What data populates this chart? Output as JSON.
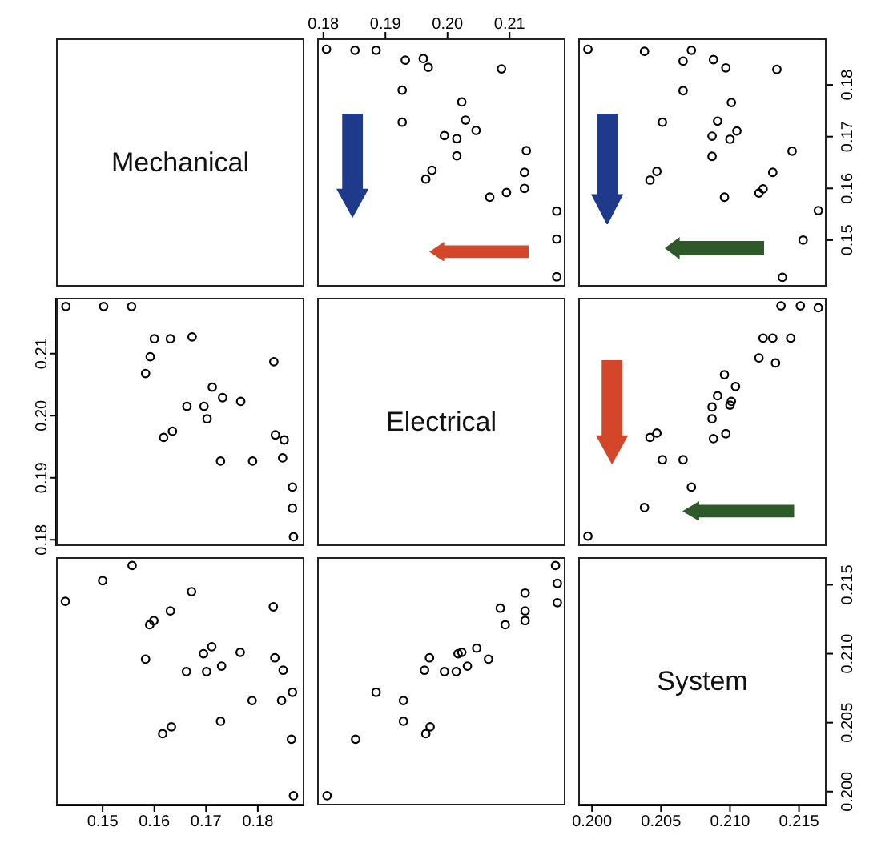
{
  "chart_data": [
    {
      "type": "other",
      "title": "Mechanical"
    },
    {
      "type": "scatter",
      "x": [
        0.2176,
        0.2176,
        0.2176,
        0.2124,
        0.2124,
        0.2127,
        0.2095,
        0.2068,
        0.2015,
        0.2046,
        0.2029,
        0.2023,
        0.2015,
        0.1995,
        0.1965,
        0.1975,
        0.1927,
        0.1927,
        0.2087,
        0.1969,
        0.1961,
        0.1932,
        0.1885,
        0.1851,
        0.1805
      ],
      "values": [
        0.1429,
        0.1502,
        0.1556,
        0.16,
        0.1631,
        0.1673,
        0.1592,
        0.1583,
        0.1663,
        0.1712,
        0.1732,
        0.1767,
        0.1696,
        0.1702,
        0.1618,
        0.1635,
        0.1728,
        0.179,
        0.1831,
        0.1834,
        0.1851,
        0.1848,
        0.1867,
        0.1867,
        0.1869
      ],
      "color": "#000000",
      "marker": "circle",
      "xlim": [
        0.179,
        0.219
      ],
      "xticks": [
        0.18,
        0.19,
        {
          "value": 0.2,
          "label": "0.20"
        },
        0.21
      ],
      "ylim": [
        0.141,
        0.189
      ],
      "yticks": [
        0.15,
        0.16,
        0.17,
        0.18
      ],
      "tick_labels": "x"
    },
    {
      "type": "scatter",
      "x": [
        0.2138,
        0.2153,
        0.2164,
        0.2145,
        0.2131,
        0.2121,
        0.2124,
        0.2096,
        0.2087,
        0.21,
        0.2105,
        0.2087,
        0.2091,
        0.2101,
        0.2042,
        0.2047,
        0.2051,
        0.2066,
        0.2134,
        0.2097,
        0.2088,
        0.2066,
        0.2072,
        0.2038,
        0.1997
      ],
      "values": [
        0.1428,
        0.15,
        0.1557,
        0.1672,
        0.1631,
        0.1591,
        0.1599,
        0.1583,
        0.1662,
        0.1695,
        0.1711,
        0.1701,
        0.173,
        0.1766,
        0.1616,
        0.1633,
        0.1728,
        0.1789,
        0.183,
        0.1833,
        0.1849,
        0.1846,
        0.1867,
        0.1865,
        0.1869
      ],
      "color": "#000000",
      "marker": "circle",
      "xlim": [
        0.199,
        0.217
      ],
      "xticks": [
        0.2,
        0.205,
        0.21,
        0.215
      ],
      "ylim": [
        0.141,
        0.189
      ],
      "yticks": [
        0.15,
        0.16,
        0.17,
        0.18
      ],
      "tick_labels": "y"
    },
    {
      "type": "scatter",
      "x": [
        0.1429,
        0.1502,
        0.1556,
        0.16,
        0.1631,
        0.1673,
        0.1592,
        0.1583,
        0.1663,
        0.1712,
        0.1732,
        0.1767,
        0.1696,
        0.1702,
        0.1618,
        0.1635,
        0.1728,
        0.179,
        0.1831,
        0.1834,
        0.1851,
        0.1848,
        0.1867,
        0.1867,
        0.1869
      ],
      "values": [
        0.2176,
        0.2176,
        0.2176,
        0.2124,
        0.2124,
        0.2127,
        0.2095,
        0.2068,
        0.2015,
        0.2046,
        0.2029,
        0.2023,
        0.2015,
        0.1995,
        0.1965,
        0.1975,
        0.1927,
        0.1927,
        0.2087,
        0.1969,
        0.1961,
        0.1932,
        0.1885,
        0.1851,
        0.1805
      ],
      "color": "#000000",
      "marker": "circle",
      "xlim": [
        0.141,
        0.189
      ],
      "xticks": [
        0.15,
        0.16,
        0.17,
        0.18
      ],
      "ylim": [
        0.179,
        0.219
      ],
      "yticks": [
        0.18,
        0.19,
        {
          "value": 0.2,
          "label": "0.20"
        },
        0.21
      ],
      "tick_labels": "y"
    },
    {
      "type": "other",
      "title": "Electrical"
    },
    {
      "type": "scatter",
      "x": [
        0.1997,
        0.2038,
        0.2072,
        0.2066,
        0.2051,
        0.2042,
        0.2047,
        0.2088,
        0.2097,
        0.2087,
        0.2087,
        0.21,
        0.2101,
        0.2091,
        0.2104,
        0.2096,
        0.2133,
        0.2121,
        0.2144,
        0.2131,
        0.2124,
        0.2164,
        0.2151,
        0.2137
      ],
      "values": [
        0.1806,
        0.1852,
        0.1885,
        0.1929,
        0.1929,
        0.1965,
        0.1972,
        0.1963,
        0.1971,
        0.1995,
        0.2014,
        0.2017,
        0.2023,
        0.2032,
        0.2047,
        0.2066,
        0.2085,
        0.2093,
        0.2125,
        0.2125,
        0.2125,
        0.2174,
        0.2177,
        0.2177
      ],
      "color": "#000000",
      "marker": "circle",
      "xlim": [
        0.199,
        0.217
      ],
      "xticks": [
        0.2,
        0.205,
        0.21,
        0.215
      ],
      "ylim": [
        0.179,
        0.219
      ],
      "yticks": [
        0.18,
        0.19,
        0.2,
        0.21
      ],
      "tick_labels": false
    },
    {
      "type": "scatter",
      "x": [
        0.1428,
        0.15,
        0.1557,
        0.1672,
        0.1631,
        0.1591,
        0.1599,
        0.1583,
        0.1662,
        0.1695,
        0.1711,
        0.1701,
        0.173,
        0.1766,
        0.1616,
        0.1633,
        0.1728,
        0.1789,
        0.183,
        0.1833,
        0.1849,
        0.1846,
        0.1867,
        0.1865,
        0.1869
      ],
      "values": [
        0.2138,
        0.2153,
        0.2164,
        0.2145,
        0.2131,
        0.2121,
        0.2124,
        0.2096,
        0.2087,
        0.21,
        0.2105,
        0.2087,
        0.2091,
        0.2101,
        0.2042,
        0.2047,
        0.2051,
        0.2066,
        0.2134,
        0.2097,
        0.2088,
        0.2066,
        0.2072,
        0.2038,
        0.1997
      ],
      "color": "#000000",
      "marker": "circle",
      "xlim": [
        0.141,
        0.189
      ],
      "xticks": [
        0.15,
        0.16,
        0.17,
        0.18
      ],
      "ylim": [
        0.199,
        0.217
      ],
      "yticks": [
        0.2,
        0.205,
        0.21,
        0.215
      ],
      "tick_labels": "x"
    },
    {
      "type": "scatter",
      "x": [
        0.1806,
        0.1852,
        0.1885,
        0.1929,
        0.1929,
        0.1965,
        0.1972,
        0.1963,
        0.1971,
        0.1995,
        0.2014,
        0.2017,
        0.2023,
        0.2032,
        0.2047,
        0.2066,
        0.2085,
        0.2093,
        0.2125,
        0.2125,
        0.2125,
        0.2174,
        0.2177,
        0.2177
      ],
      "values": [
        0.1997,
        0.2038,
        0.2072,
        0.2066,
        0.2051,
        0.2042,
        0.2047,
        0.2088,
        0.2097,
        0.2087,
        0.2087,
        0.21,
        0.2101,
        0.2091,
        0.2104,
        0.2096,
        0.2133,
        0.2121,
        0.2144,
        0.2131,
        0.2124,
        0.2164,
        0.2151,
        0.2137
      ],
      "color": "#000000",
      "marker": "circle",
      "xlim": [
        0.179,
        0.219
      ],
      "xticks": [
        0.18,
        0.19,
        0.2,
        0.21
      ],
      "ylim": [
        0.199,
        0.217
      ],
      "yticks": [
        0.2,
        0.205,
        0.21,
        0.215
      ],
      "tick_labels": false
    },
    {
      "type": "scatter",
      "title": "System",
      "xlim": [
        0.199,
        0.217
      ],
      "xticks": [
        {
          "value": 0.2,
          "label": "0.200"
        },
        {
          "value": 0.205,
          "label": "0.205"
        },
        {
          "value": 0.21,
          "label": "0.210"
        },
        {
          "value": 0.215,
          "label": "0.215"
        }
      ],
      "ylim": [
        0.199,
        0.217
      ],
      "yticks": [
        {
          "value": 0.2,
          "label": "0.200"
        },
        {
          "value": 0.205,
          "label": "0.205"
        },
        {
          "value": 0.21,
          "label": "0.210"
        },
        {
          "value": 0.215,
          "label": "0.215"
        }
      ]
    }
  ]
}
